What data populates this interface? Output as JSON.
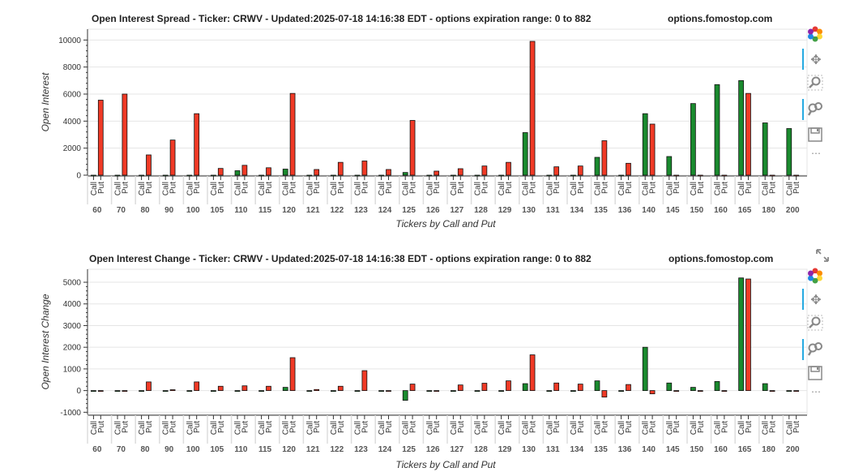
{
  "strikes": [
    "60",
    "70",
    "80",
    "90",
    "100",
    "105",
    "110",
    "115",
    "120",
    "121",
    "122",
    "123",
    "124",
    "125",
    "126",
    "127",
    "128",
    "129",
    "130",
    "131",
    "134",
    "135",
    "136",
    "140",
    "145",
    "150",
    "160",
    "165",
    "180",
    "200"
  ],
  "call_label": "Call",
  "put_label": "Put",
  "colors": {
    "call": "#1a8a2e",
    "put": "#f03a26",
    "outline": "#111111",
    "grid": "#e5e5e5"
  },
  "chart_data": [
    {
      "type": "bar",
      "title": "Open Interest Spread - Ticker: CRWV - Updated:2025-07-18 14:16:38 EDT - options expiration range: 0 to 882",
      "watermark": "options.fomostop.com",
      "xlabel": "Tickers by Call and Put",
      "ylabel": "Open Interest",
      "ylim": [
        0,
        10800
      ],
      "yticks": [
        0,
        2000,
        4000,
        6000,
        8000,
        10000
      ],
      "categories": [
        "60",
        "70",
        "80",
        "90",
        "100",
        "105",
        "110",
        "115",
        "120",
        "121",
        "122",
        "123",
        "124",
        "125",
        "126",
        "127",
        "128",
        "129",
        "130",
        "131",
        "134",
        "135",
        "136",
        "140",
        "145",
        "150",
        "160",
        "165",
        "180",
        "200"
      ],
      "series": [
        {
          "name": "Call",
          "values": [
            0,
            0,
            0,
            0,
            0,
            0,
            330,
            0,
            450,
            0,
            0,
            0,
            0,
            200,
            0,
            0,
            0,
            0,
            3150,
            0,
            0,
            1320,
            0,
            4550,
            1380,
            5300,
            6700,
            7000,
            3870,
            3450
          ]
        },
        {
          "name": "Put",
          "values": [
            5550,
            6000,
            1500,
            2600,
            4550,
            500,
            730,
            550,
            6050,
            420,
            950,
            1050,
            420,
            4050,
            300,
            480,
            680,
            950,
            9900,
            620,
            680,
            2550,
            880,
            3780,
            0,
            0,
            0,
            6050,
            0,
            0
          ]
        }
      ]
    },
    {
      "type": "bar",
      "title": "Open Interest Change - Ticker: CRWV - Updated:2025-07-18 14:16:38 EDT - options expiration range: 0 to 882",
      "watermark": "options.fomostop.com",
      "xlabel": "Tickers by Call and Put",
      "ylabel": "Open Interest Change",
      "ylim": [
        -1100,
        5600
      ],
      "yticks": [
        -1000,
        0,
        1000,
        2000,
        3000,
        4000,
        5000
      ],
      "categories": [
        "60",
        "70",
        "80",
        "90",
        "100",
        "105",
        "110",
        "115",
        "120",
        "121",
        "122",
        "123",
        "124",
        "125",
        "126",
        "127",
        "128",
        "129",
        "130",
        "131",
        "134",
        "135",
        "136",
        "140",
        "145",
        "150",
        "160",
        "165",
        "180",
        "200"
      ],
      "series": [
        {
          "name": "Call",
          "values": [
            0,
            0,
            0,
            0,
            0,
            0,
            -20,
            0,
            150,
            0,
            0,
            0,
            0,
            -450,
            0,
            0,
            0,
            0,
            320,
            0,
            0,
            450,
            0,
            2000,
            350,
            150,
            420,
            5200,
            320,
            0
          ]
        },
        {
          "name": "Put",
          "values": [
            0,
            0,
            400,
            40,
            400,
            200,
            220,
            200,
            1520,
            50,
            200,
            920,
            0,
            300,
            0,
            260,
            340,
            450,
            1650,
            350,
            300,
            -300,
            280,
            -150,
            0,
            0,
            0,
            5150,
            0,
            0
          ]
        }
      ]
    }
  ]
}
